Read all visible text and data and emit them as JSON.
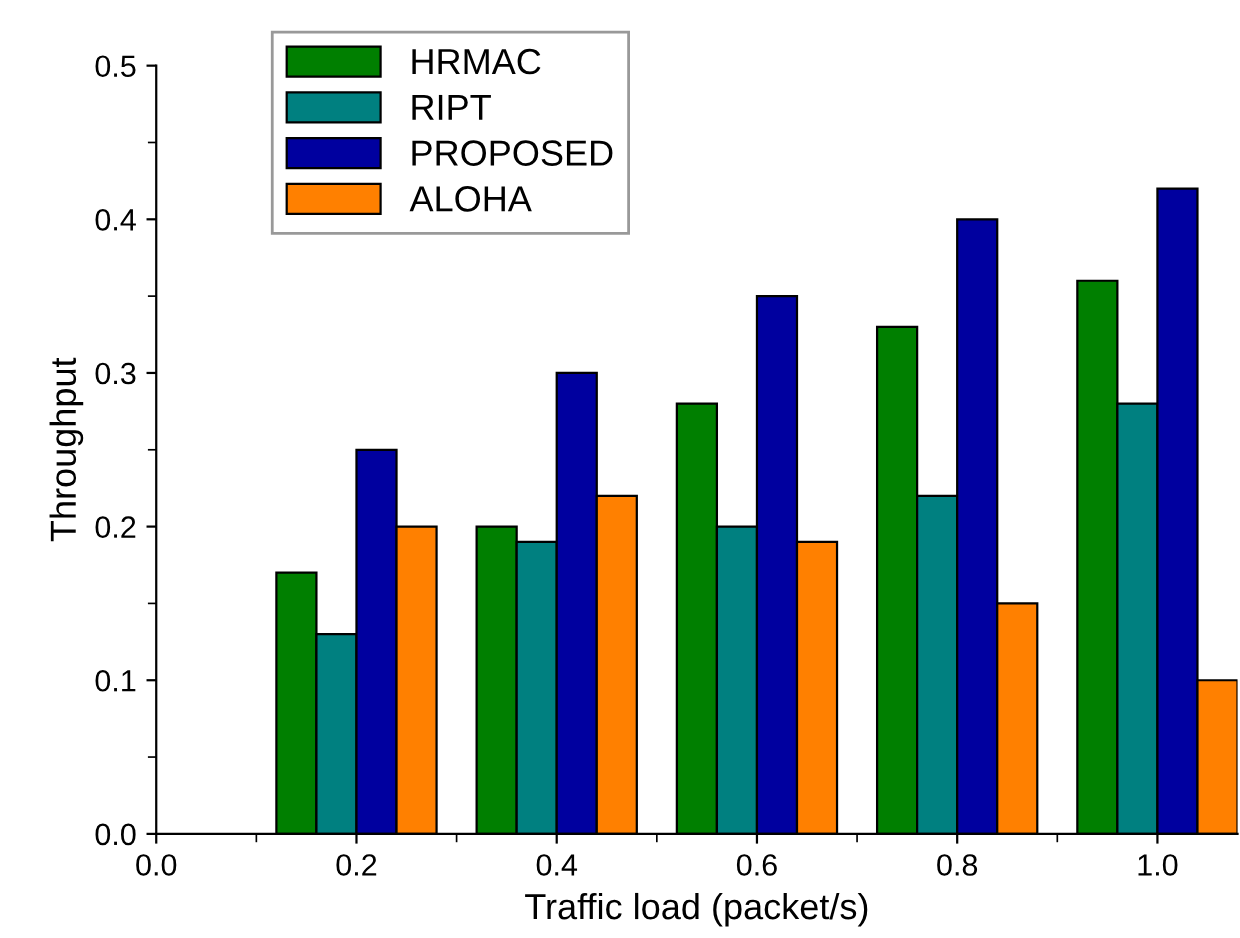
{
  "chart_data": {
    "type": "bar",
    "xlabel": "Traffic load (packet/s)",
    "ylabel": "Throughput",
    "x": [
      0.2,
      0.4,
      0.6,
      0.8,
      1.0
    ],
    "series": [
      {
        "name": "HRMAC",
        "color": "#007f00",
        "values": [
          0.17,
          0.2,
          0.28,
          0.33,
          0.36
        ]
      },
      {
        "name": "RIPT",
        "color": "#008080",
        "values": [
          0.13,
          0.19,
          0.2,
          0.22,
          0.28
        ]
      },
      {
        "name": "PROPOSED",
        "color": "#00009f",
        "values": [
          0.25,
          0.3,
          0.35,
          0.4,
          0.42
        ]
      },
      {
        "name": "ALOHA",
        "color": "#ff8000",
        "values": [
          0.2,
          0.22,
          0.19,
          0.15,
          0.1
        ]
      }
    ],
    "xlim": [
      0.0,
      1.08
    ],
    "xticks": [
      {
        "value": 0.0,
        "label": "0.0"
      },
      0.2,
      0.4,
      0.6,
      0.8,
      {
        "value": 1.0,
        "label": "1.0"
      }
    ],
    "ylim": [
      0.0,
      0.5
    ],
    "yticks": [
      {
        "value": 0.0,
        "label": "0.0"
      },
      0.1,
      0.2,
      0.3,
      0.4,
      0.5
    ],
    "grid": false,
    "legend": "top left"
  }
}
